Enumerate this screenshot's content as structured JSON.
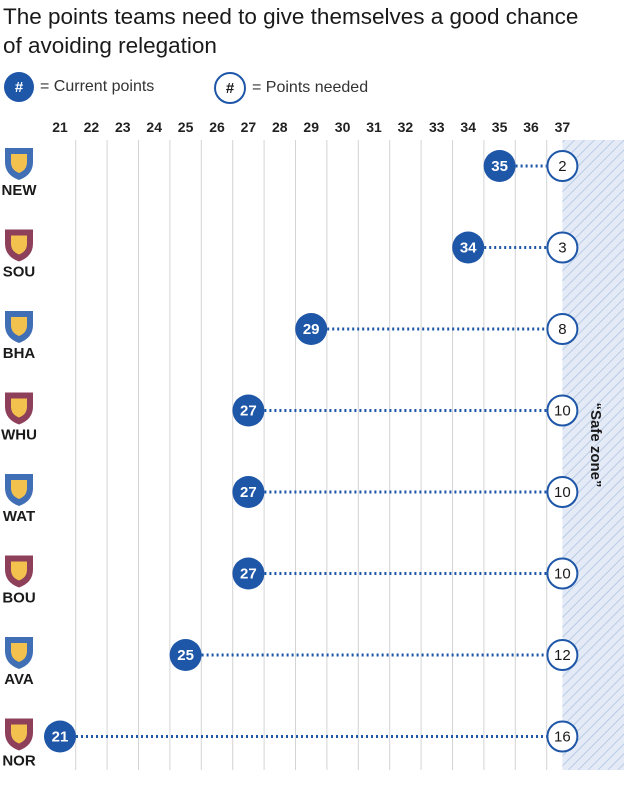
{
  "title": "The points teams need to give themselves a good chance of avoiding relegation",
  "legend": {
    "symbol": "#",
    "current_label": "= Current points",
    "needed_label": "= Points needed"
  },
  "colors": {
    "accent": "#1e56a8",
    "grid": "#d4d4d4",
    "zone_fill": "#dde6f3",
    "zone_hatch": "#b9cbe6"
  },
  "chart_data": {
    "type": "dot-range",
    "title": "The points teams need to give themselves a good chance of avoiding relegation",
    "x_ticks": [
      21,
      22,
      23,
      24,
      25,
      26,
      27,
      28,
      29,
      30,
      31,
      32,
      33,
      34,
      35,
      36,
      37
    ],
    "xlim": [
      21,
      37
    ],
    "grid": true,
    "safe_zone": {
      "from": 37,
      "label": "“Safe zone”"
    },
    "teams": [
      {
        "abbr": "NEW",
        "current": 35,
        "needed": 2,
        "logo": "newcastle-crest"
      },
      {
        "abbr": "SOU",
        "current": 34,
        "needed": 3,
        "logo": "southampton-crest"
      },
      {
        "abbr": "BHA",
        "current": 29,
        "needed": 8,
        "logo": "brighton-crest"
      },
      {
        "abbr": "WHU",
        "current": 27,
        "needed": 10,
        "logo": "west-ham-crest"
      },
      {
        "abbr": "WAT",
        "current": 27,
        "needed": 10,
        "logo": "watford-crest"
      },
      {
        "abbr": "BOU",
        "current": 27,
        "needed": 10,
        "logo": "bournemouth-crest"
      },
      {
        "abbr": "AVA",
        "current": 25,
        "needed": 12,
        "logo": "aston-villa-crest"
      },
      {
        "abbr": "NOR",
        "current": 21,
        "needed": 16,
        "logo": "norwich-crest"
      }
    ]
  }
}
